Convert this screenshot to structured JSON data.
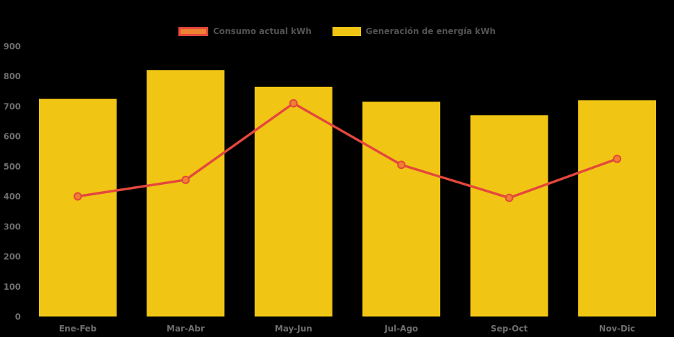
{
  "chart_data": {
    "type": "bar",
    "categories": [
      "Ene-Feb",
      "Mar-Abr",
      "May-Jun",
      "Jul-Ago",
      "Sep-Oct",
      "Nov-Dic"
    ],
    "series": [
      {
        "name": "Consumo actual kWh",
        "type": "line",
        "values": [
          400,
          455,
          710,
          505,
          395,
          525
        ],
        "color": "#E4473C",
        "marker_fill": "#EE8132"
      },
      {
        "name": "Generación de energía kWh",
        "type": "bar",
        "values": [
          725,
          820,
          765,
          715,
          670,
          720
        ],
        "color": "#F0C514"
      }
    ],
    "title": "",
    "xlabel": "",
    "ylabel": "",
    "ylim": [
      0,
      900
    ],
    "ytick_step": 100,
    "ytick_labels": [
      "0",
      "100",
      "200",
      "300",
      "400",
      "500",
      "600",
      "700",
      "800",
      "900"
    ],
    "grid": false,
    "legend_position": "top-center",
    "background": "#000000",
    "axis_label_color": "#6E6E6E",
    "legend_text_color": "#525252"
  }
}
